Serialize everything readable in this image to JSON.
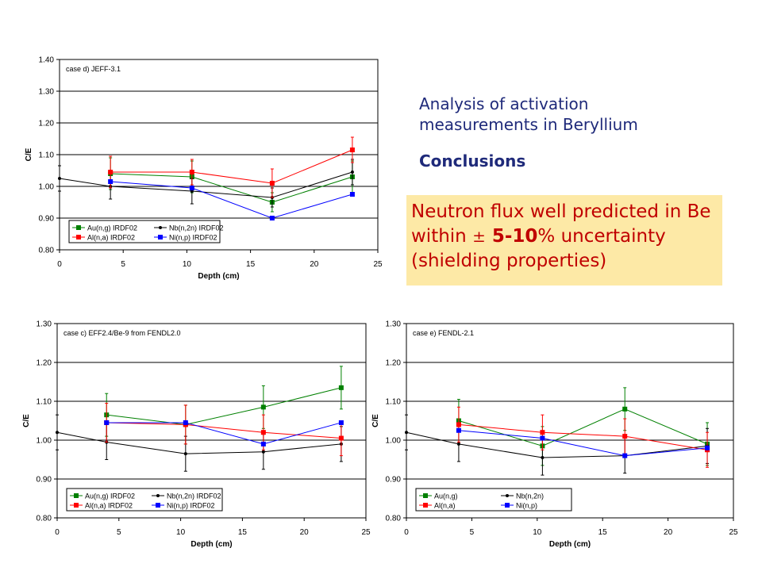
{
  "analysis_title_line1": "Analysis of activation",
  "analysis_title_line2": "measurements in Beryllium",
  "conclusions_heading": "Conclusions",
  "conclusion": {
    "line1": "Neutron flux well predicted in Be",
    "line2_prefix": "within ",
    "line2_pm": "±",
    "line2_bold": " 5-10",
    "line2_suffix": "% uncertainty",
    "line3": "(shielding properties)"
  },
  "colors": {
    "green": "#008000",
    "black": "#000000",
    "red": "#ff0000",
    "blue": "#0000ff",
    "text_blue": "#1f2a7a",
    "text_red": "#c00000",
    "box_bg": "#fde9a6"
  },
  "chart_data": [
    {
      "id": "d",
      "type": "line",
      "title": "case d) JEFF-3.1",
      "xlabel": "Depth (cm)",
      "ylabel": "C/E",
      "xlim": [
        0,
        25
      ],
      "ylim": [
        0.8,
        1.4
      ],
      "xticks": [
        "0",
        "5",
        "10",
        "15",
        "20",
        "25"
      ],
      "yticks": [
        "0.80",
        "0.90",
        "1.00",
        "1.10",
        "1.20",
        "1.30",
        "1.40"
      ],
      "grid": "horizontal",
      "legend_position": "bottom-left",
      "series": [
        {
          "name": "Au(n,g) IRDF02",
          "color": "#008000",
          "marker": "square",
          "x": [
            4,
            10.4,
            16.7,
            23
          ],
          "y": [
            1.04,
            1.03,
            0.95,
            1.03
          ],
          "err": [
            0.05,
            0.05,
            0.03,
            0.05
          ]
        },
        {
          "name": "Nb(n,2n) IRDF02",
          "color": "#000000",
          "marker": "dot",
          "x": [
            0,
            4,
            10.4,
            16.7,
            23
          ],
          "y": [
            1.025,
            1.0,
            0.985,
            0.965,
            1.045
          ],
          "err": [
            0.04,
            0.04,
            0.04,
            0.03,
            0.04
          ]
        },
        {
          "name": "Al(n,a) IRDF02",
          "color": "#ff0000",
          "marker": "square",
          "x": [
            4,
            10.4,
            16.7,
            23
          ],
          "y": [
            1.045,
            1.045,
            1.01,
            1.115
          ],
          "err": [
            0.05,
            0.04,
            0.045,
            0.04
          ]
        },
        {
          "name": "Ni(n,p) IRDF02",
          "color": "#0000ff",
          "marker": "square",
          "x": [
            4,
            10.4,
            16.7,
            23
          ],
          "y": [
            1.015,
            0.995,
            0.9,
            0.975
          ],
          "err": [
            0,
            0,
            0,
            0
          ]
        }
      ]
    },
    {
      "id": "c",
      "type": "line",
      "title": "case c) EFF2.4/Be-9 from FENDL2.0",
      "xlabel": "Depth (cm)",
      "ylabel": "C/E",
      "xlim": [
        0,
        25
      ],
      "ylim": [
        0.8,
        1.3
      ],
      "xticks": [
        "0",
        "5",
        "10",
        "15",
        "20",
        "25"
      ],
      "yticks": [
        "0.80",
        "0.90",
        "1.00",
        "1.10",
        "1.20",
        "1.30"
      ],
      "grid": "horizontal",
      "legend_position": "bottom-left",
      "series": [
        {
          "name": "Au(n,g) IRDF02",
          "color": "#008000",
          "marker": "square",
          "x": [
            4,
            10.4,
            16.7,
            23
          ],
          "y": [
            1.065,
            1.04,
            1.085,
            1.135
          ],
          "err": [
            0.055,
            0.05,
            0.055,
            0.055
          ]
        },
        {
          "name": "Nb(n,2n) IRDF02",
          "color": "#000000",
          "marker": "dot",
          "x": [
            0,
            4,
            10.4,
            16.7,
            23
          ],
          "y": [
            1.02,
            0.995,
            0.965,
            0.97,
            0.99
          ],
          "err": [
            0.045,
            0.045,
            0.045,
            0.045,
            0.045
          ]
        },
        {
          "name": "Al(n,a) IRDF02",
          "color": "#ff0000",
          "marker": "square",
          "x": [
            4,
            10.4,
            16.7,
            23
          ],
          "y": [
            1.045,
            1.04,
            1.02,
            1.005
          ],
          "err": [
            0.05,
            0.05,
            0.045,
            0.045
          ]
        },
        {
          "name": "Ni(n,p) IRDF02",
          "color": "#0000ff",
          "marker": "square",
          "x": [
            4,
            10.4,
            16.7,
            23
          ],
          "y": [
            1.045,
            1.045,
            0.99,
            1.045
          ],
          "err": [
            0,
            0,
            0,
            0
          ]
        }
      ]
    },
    {
      "id": "e",
      "type": "line",
      "title": "case e) FENDL-2.1",
      "xlabel": "Depth (cm)",
      "ylabel": "C/E",
      "xlim": [
        0,
        25
      ],
      "ylim": [
        0.8,
        1.3
      ],
      "xticks": [
        "0",
        "5",
        "10",
        "15",
        "20",
        "25"
      ],
      "yticks": [
        "0.80",
        "0.90",
        "1.00",
        "1.10",
        "1.20",
        "1.30"
      ],
      "grid": "horizontal",
      "legend_position": "bottom-left",
      "series": [
        {
          "name": "Au(n,g)",
          "color": "#008000",
          "marker": "square",
          "x": [
            4,
            10.4,
            16.7,
            23
          ],
          "y": [
            1.05,
            0.985,
            1.08,
            0.99
          ],
          "err": [
            0.055,
            0.05,
            0.055,
            0.055
          ]
        },
        {
          "name": "Nb(n,2n)",
          "color": "#000000",
          "marker": "dot",
          "x": [
            0,
            4,
            10.4,
            16.7,
            23
          ],
          "y": [
            1.02,
            0.99,
            0.955,
            0.96,
            0.985
          ],
          "err": [
            0.045,
            0.045,
            0.045,
            0.045,
            0.045
          ]
        },
        {
          "name": "Al(n,a)",
          "color": "#ff0000",
          "marker": "square",
          "x": [
            4,
            10.4,
            16.7,
            23
          ],
          "y": [
            1.04,
            1.02,
            1.01,
            0.975
          ],
          "err": [
            0.045,
            0.045,
            0.045,
            0.045
          ]
        },
        {
          "name": "Ni(n,p)",
          "color": "#0000ff",
          "marker": "square",
          "x": [
            4,
            10.4,
            16.7,
            23
          ],
          "y": [
            1.025,
            1.005,
            0.96,
            0.98
          ],
          "err": [
            0,
            0,
            0,
            0
          ]
        }
      ]
    }
  ]
}
